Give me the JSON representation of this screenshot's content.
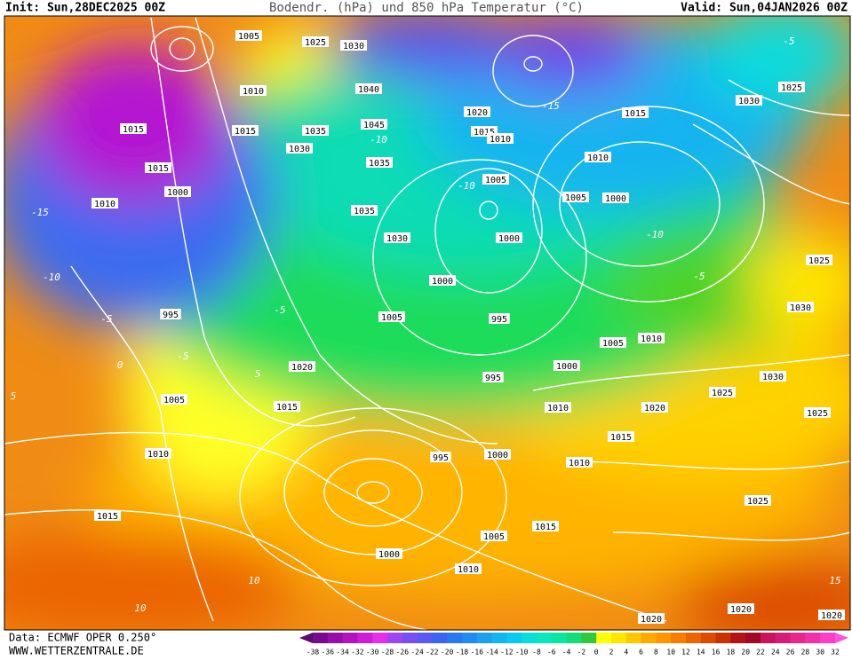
{
  "header": {
    "init": "Init: Sun,28DEC2025 00Z",
    "title": "Bodendr. (hPa) und 850 hPa Temperatur (°C)",
    "valid": "Valid: Sun,04JAN2026 00Z"
  },
  "footer": {
    "data": "Data: ECMWF OPER 0.250°",
    "site": "WWW.WETTERZENTRALE.DE"
  },
  "legend": {
    "ticks": [
      -38,
      -36,
      -34,
      -32,
      -30,
      -28,
      -26,
      -24,
      -22,
      -20,
      -18,
      -16,
      -14,
      -12,
      -10,
      -8,
      -6,
      -4,
      -2,
      0,
      2,
      4,
      6,
      8,
      10,
      12,
      14,
      16,
      18,
      20,
      22,
      24,
      26,
      28,
      30,
      32
    ],
    "colors": [
      "#5c0a6e",
      "#780a8c",
      "#9410a6",
      "#b014be",
      "#cc1ed6",
      "#e42ee8",
      "#a046f0",
      "#7850f0",
      "#5a5af0",
      "#3c64f0",
      "#2878f0",
      "#1e8cf0",
      "#1ea0f0",
      "#14b4f0",
      "#0ac8f0",
      "#0adcdc",
      "#0ae6be",
      "#0ae6a0",
      "#14dc78",
      "#32c83c",
      "#ffff00",
      "#ffe600",
      "#ffc800",
      "#ffaa00",
      "#ff9600",
      "#f57d00",
      "#eb6400",
      "#dc4b00",
      "#c83200",
      "#b41414",
      "#a00a28",
      "#c8145a",
      "#d21e78",
      "#e6288c",
      "#f032aa",
      "#ff3cc8",
      "#ff50dc"
    ]
  },
  "isobar_labels": [
    "1005",
    "1025",
    "1030",
    "1010",
    "1040",
    "1020",
    "1015",
    "1030",
    "1025",
    "1015",
    "1015",
    "1035",
    "1045",
    "1015",
    "1010",
    "1015",
    "1030",
    "1035",
    "1010",
    "1000",
    "1005",
    "1005",
    "1000",
    "1010",
    "1035",
    "1030",
    "1000",
    "1000",
    "995",
    "1005",
    "995",
    "1025",
    "1030",
    "1020",
    "995",
    "1000",
    "1005",
    "1010",
    "1005",
    "1015",
    "1025",
    "1030",
    "1010",
    "1020",
    "1025",
    "1015",
    "1010",
    "995",
    "1000",
    "1010",
    "1025",
    "1015",
    "1015",
    "1005",
    "1000",
    "1010",
    "1020",
    "1020",
    "1020"
  ],
  "temp_labels": [
    "-15",
    "-10",
    "-5",
    "0",
    "5",
    "-5",
    "-10",
    "-15",
    "-5",
    "-10",
    "-10",
    "-5",
    "5",
    "10",
    "10",
    "15",
    "-5"
  ]
}
